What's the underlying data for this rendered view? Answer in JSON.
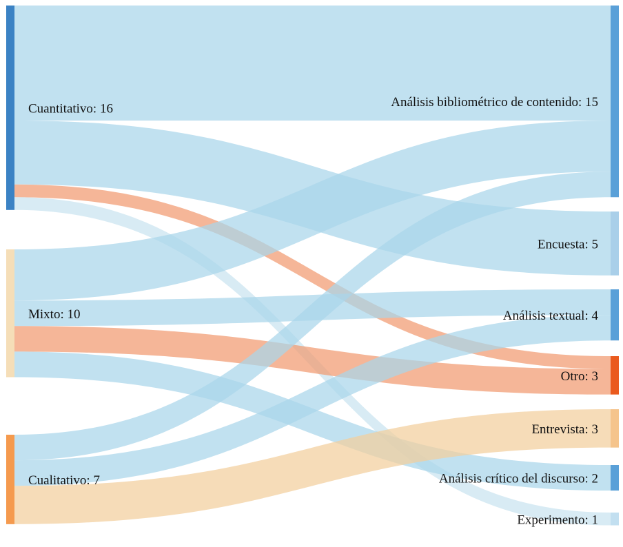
{
  "sources": [
    {
      "id": "cuant",
      "name": "Cuantitativo",
      "value": 16,
      "color": "#3b82c4"
    },
    {
      "id": "mixto",
      "name": "Mixto",
      "value": 10,
      "color": "#f5deb8"
    },
    {
      "id": "cual",
      "name": "Cualitativo",
      "value": 7,
      "color": "#f59a4e"
    }
  ],
  "targets": [
    {
      "id": "abc",
      "name": "Análisis bibliométrico de contenido",
      "value": 15,
      "color": "#5aa0d8"
    },
    {
      "id": "enc",
      "name": "Encuesta",
      "value": 5,
      "color": "#a9cfe9"
    },
    {
      "id": "atx",
      "name": "Análisis textual",
      "value": 4,
      "color": "#5aa0d8"
    },
    {
      "id": "otr",
      "name": "Otro",
      "value": 3,
      "color": "#ea5a1e"
    },
    {
      "id": "ent",
      "name": "Entrevista",
      "value": 3,
      "color": "#f5c48c"
    },
    {
      "id": "acd",
      "name": "Análisis crítico del discurso",
      "value": 2,
      "color": "#5aa0d8"
    },
    {
      "id": "exp",
      "name": "Experimento",
      "value": 1,
      "color": "#c2dff0"
    }
  ],
  "links": [
    {
      "source": "cuant",
      "target": "abc",
      "value": 9,
      "color": "#a9d6ea"
    },
    {
      "source": "cuant",
      "target": "enc",
      "value": 5,
      "color": "#a9d6ea"
    },
    {
      "source": "cuant",
      "target": "otr",
      "value": 1,
      "color": "#f19a70"
    },
    {
      "source": "cuant",
      "target": "exp",
      "value": 1,
      "color": "#c9e3f0"
    },
    {
      "source": "mixto",
      "target": "abc",
      "value": 4,
      "color": "#a9d6ea"
    },
    {
      "source": "mixto",
      "target": "atx",
      "value": 2,
      "color": "#a9d6ea"
    },
    {
      "source": "mixto",
      "target": "otr",
      "value": 2,
      "color": "#f19a70"
    },
    {
      "source": "mixto",
      "target": "acd",
      "value": 2,
      "color": "#a9d6ea"
    },
    {
      "source": "cual",
      "target": "abc",
      "value": 2,
      "color": "#a9d6ea"
    },
    {
      "source": "cual",
      "target": "atx",
      "value": 2,
      "color": "#a9d6ea"
    },
    {
      "source": "cual",
      "target": "ent",
      "value": 3,
      "color": "#f3cf9c"
    }
  ]
}
